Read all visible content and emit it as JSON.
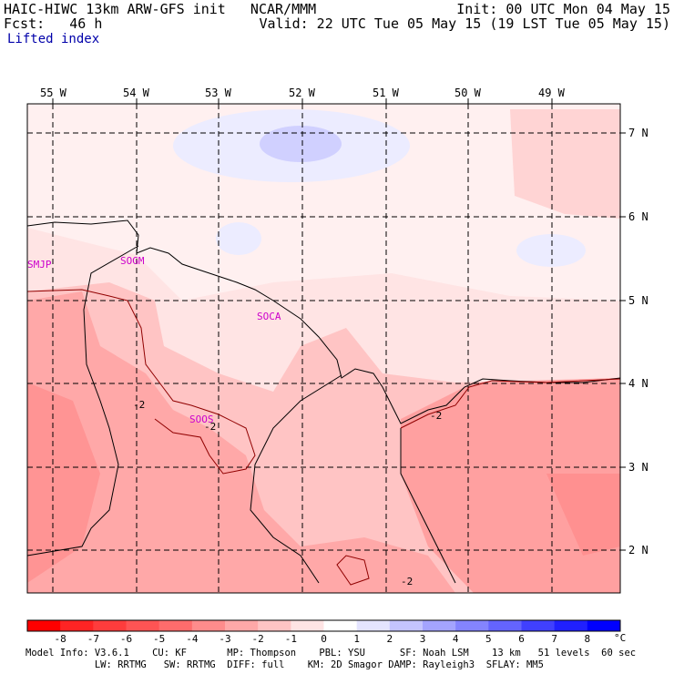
{
  "header": {
    "model_line": "HAIC-HIWC 13km ARW-GFS init   NCAR/MMM",
    "fcst_line": "Fcst:   46 h",
    "field_name": "Lifted index",
    "init_line": "Init: 00 UTC Mon 04 May 15",
    "valid_line": "Valid: 22 UTC Tue 05 May 15 (19 LST Tue 05 May 15)"
  },
  "map": {
    "lon_labels": [
      "55 W",
      "54 W",
      "53 W",
      "52 W",
      "51 W",
      "50 W",
      "49 W"
    ],
    "lat_labels": [
      "7 N",
      "6 N",
      "5 N",
      "4 N",
      "3 N",
      "2 N"
    ],
    "stations": [
      "SMJP",
      "SOGM",
      "SOCA",
      "SOOS"
    ],
    "contour_labels": [
      "-2",
      "-2",
      "-2",
      "-2"
    ]
  },
  "colorbar": {
    "labels": [
      "-8",
      "-7",
      "-6",
      "-5",
      "-4",
      "-3",
      "-2",
      "-1",
      "0",
      "1",
      "2",
      "3",
      "4",
      "5",
      "6",
      "7",
      "8"
    ],
    "unit": "°C",
    "colors": [
      "#ff0000",
      "#ff2424",
      "#ff3c3c",
      "#ff5454",
      "#ff6c6c",
      "#ff8c8c",
      "#ffa8a8",
      "#ffc4c4",
      "#ffe4e4",
      "#ffffff",
      "#e4e4ff",
      "#c4c4ff",
      "#a4a4ff",
      "#8484ff",
      "#6464ff",
      "#4040ff",
      "#2020ff",
      "#0000ff"
    ]
  },
  "footer": {
    "line1": "Model Info: V3.6.1    CU: KF       MP: Thompson    PBL: YSU      SF: Noah LSM    13 km   51 levels  60 sec",
    "line2": "            LW: RRTMG   SW: RRTMG  DIFF: full    KM: 2D Smagor DAMP: Rayleigh3  SFLAY: MM5"
  }
}
